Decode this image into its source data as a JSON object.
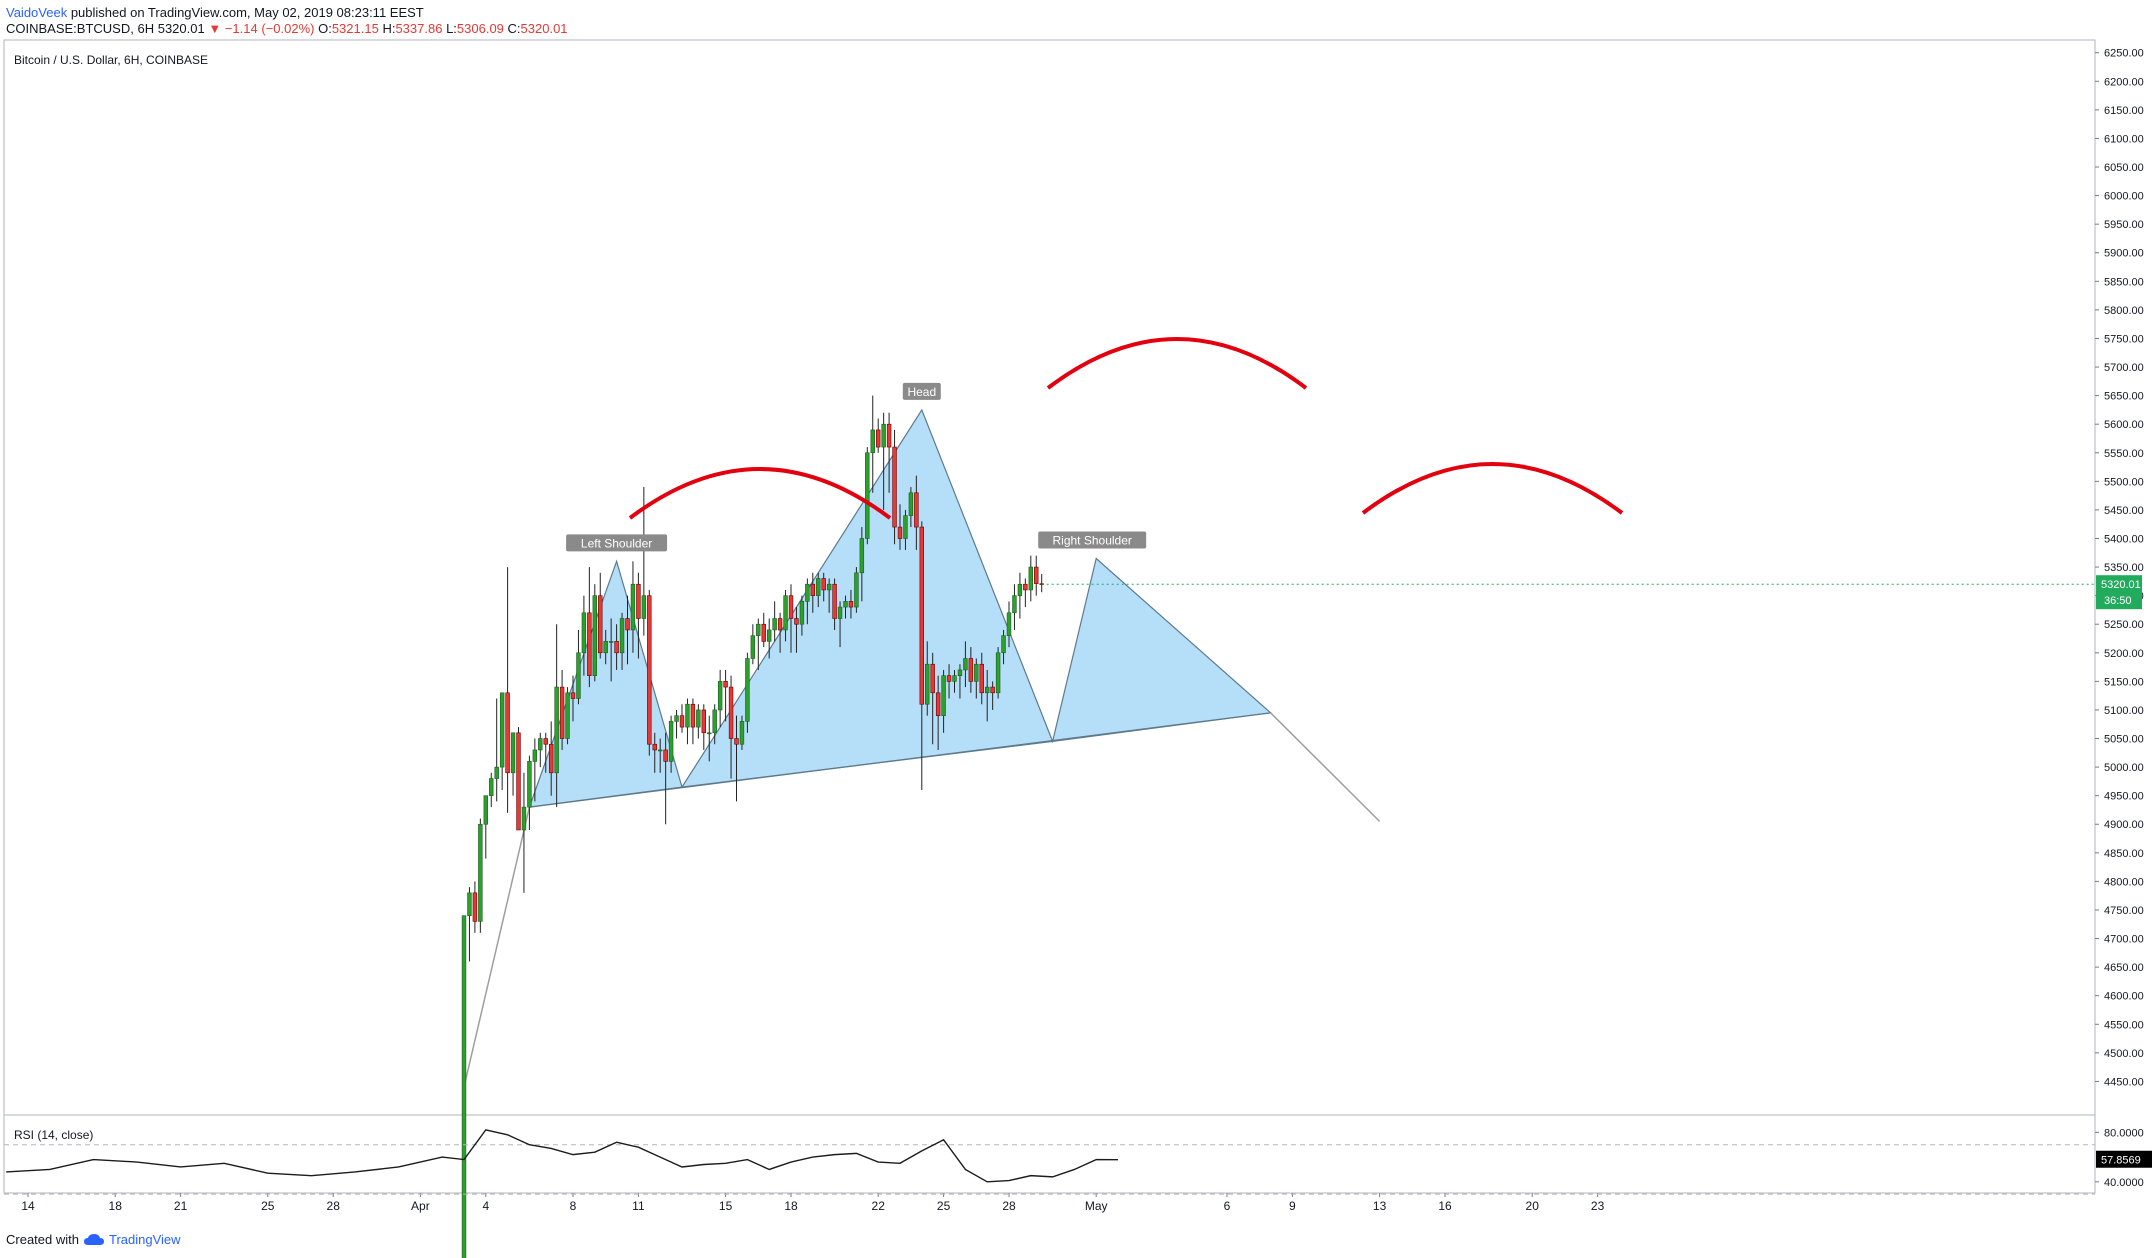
{
  "header": {
    "author": "VaidoVeek",
    "published": "published on TradingView.com, May 02, 2019 08:23:11 EEST",
    "symbol": "COINBASE:BTCUSD, 6H",
    "last": "5320.01",
    "change_arrow": "▼",
    "change": "−1.14 (−0.02%)",
    "o_label": "O:",
    "o": "5321.15",
    "h_label": "H:",
    "h": "5337.86",
    "l_label": "L:",
    "l": "5306.09",
    "c_label": "C:",
    "c": "5320.01"
  },
  "chart_title": "Bitcoin / U.S. Dollar, 6H, COINBASE",
  "rsi_label": "RSI (14, close)",
  "colors": {
    "up": "#26a69a",
    "up_fill": "#2ca02c",
    "down": "#e53935",
    "pattern_fill": "#a8d8f8",
    "pattern_stroke": "#5c7a8c",
    "arc": "#e3000f",
    "last_price_bg": "#22ab5c"
  },
  "footer": {
    "created_with": "Created with",
    "brand": "TradingView",
    "logo_icon": "tradingview-cloud-icon"
  },
  "chart_data": [
    {
      "type": "candlestick",
      "title": "Bitcoin / U.S. Dollar, 6H, COINBASE",
      "x_axis": {
        "labels": [
          "14",
          "18",
          "21",
          "25",
          "28",
          "Apr",
          "4",
          "8",
          "11",
          "15",
          "18",
          "22",
          "25",
          "28",
          "May",
          "6",
          "9",
          "13",
          "16",
          "20",
          "23"
        ]
      },
      "y_axis": {
        "ylim": [
          4400,
          6260
        ],
        "ticks": [
          "6250.00",
          "6200.00",
          "6150.00",
          "6100.00",
          "6050.00",
          "6000.00",
          "5950.00",
          "5900.00",
          "5850.00",
          "5800.00",
          "5750.00",
          "5700.00",
          "5650.00",
          "5600.00",
          "5550.00",
          "5500.00",
          "5450.00",
          "5400.00",
          "5350.00",
          "5300.00",
          "5250.00",
          "5200.00",
          "5150.00",
          "5100.00",
          "5050.00",
          "5000.00",
          "4950.00",
          "4900.00",
          "4850.00",
          "4800.00",
          "4750.00",
          "4700.00",
          "4650.00",
          "4600.00",
          "4550.00",
          "4500.00",
          "4450.00"
        ],
        "position": "right"
      },
      "last_price_label": "5320.01",
      "countdown_label": "36:50",
      "annotations": [
        "Left Shoulder",
        "Head",
        "Right Shoulder"
      ],
      "pattern": "head and shoulders",
      "pattern_points": [
        {
          "date": "Apr 5",
          "price": 4930
        },
        {
          "date": "Apr 9",
          "price": 5360
        },
        {
          "date": "Apr 12",
          "price": 4965
        },
        {
          "date": "Apr 23",
          "price": 5625
        },
        {
          "date": "Apr 29",
          "price": 5045
        },
        {
          "date": "May 1",
          "price": 5365
        },
        {
          "date": "May 9",
          "price": 5095
        }
      ],
      "extension_line": [
        {
          "date": "Apr 2",
          "price": 4440
        },
        {
          "date": "Apr 5",
          "price": 4930
        },
        {
          "date": "May 9",
          "price": 5095
        },
        {
          "date": "May 14",
          "price": 4905
        }
      ],
      "candles": [
        [
          4140,
          4740,
          4140,
          4740
        ],
        [
          4740,
          4790,
          4660,
          4780
        ],
        [
          4780,
          4800,
          4710,
          4730
        ],
        [
          4730,
          4910,
          4710,
          4900
        ],
        [
          4900,
          4950,
          4840,
          4950
        ],
        [
          4950,
          4990,
          4930,
          4980
        ],
        [
          4980,
          5120,
          4940,
          5000
        ],
        [
          5000,
          5130,
          4960,
          5130
        ],
        [
          5130,
          5350,
          4920,
          4990
        ],
        [
          4990,
          5060,
          4950,
          5060
        ],
        [
          5060,
          5070,
          4900,
          4890
        ],
        [
          4890,
          4990,
          4780,
          4930
        ],
        [
          4930,
          5020,
          4890,
          5010
        ],
        [
          5010,
          5050,
          4940,
          5030
        ],
        [
          5030,
          5060,
          5000,
          5050
        ],
        [
          5050,
          5060,
          4990,
          5040
        ],
        [
          5040,
          5080,
          4950,
          4990
        ],
        [
          4990,
          5250,
          4930,
          5140
        ],
        [
          5140,
          5170,
          5030,
          5050
        ],
        [
          5050,
          5140,
          5040,
          5130
        ],
        [
          5130,
          5160,
          5080,
          5120
        ],
        [
          5120,
          5240,
          5110,
          5200
        ],
        [
          5200,
          5300,
          5160,
          5270
        ],
        [
          5270,
          5350,
          5140,
          5160
        ],
        [
          5160,
          5320,
          5150,
          5300
        ],
        [
          5300,
          5340,
          5190,
          5200
        ],
        [
          5200,
          5240,
          5180,
          5220
        ],
        [
          5220,
          5260,
          5150,
          5220
        ],
        [
          5220,
          5250,
          5170,
          5200
        ],
        [
          5200,
          5270,
          5170,
          5260
        ],
        [
          5260,
          5300,
          5180,
          5240
        ],
        [
          5240,
          5360,
          5200,
          5320
        ],
        [
          5320,
          5340,
          5190,
          5260
        ],
        [
          5260,
          5490,
          5230,
          5300
        ],
        [
          5300,
          5310,
          5020,
          5040
        ],
        [
          5040,
          5060,
          4990,
          5030
        ],
        [
          5030,
          5050,
          4990,
          5030
        ],
        [
          5030,
          5060,
          4900,
          5010
        ],
        [
          5010,
          5090,
          4990,
          5080
        ],
        [
          5080,
          5100,
          5050,
          5090
        ],
        [
          5090,
          5110,
          5060,
          5070
        ],
        [
          5070,
          5120,
          5040,
          5110
        ],
        [
          5110,
          5120,
          5040,
          5070
        ],
        [
          5070,
          5110,
          5050,
          5100
        ],
        [
          5100,
          5110,
          5030,
          5060
        ],
        [
          5060,
          5090,
          5010,
          5060
        ],
        [
          5060,
          5110,
          5040,
          5100
        ],
        [
          5100,
          5170,
          5070,
          5150
        ],
        [
          5150,
          5170,
          5080,
          5140
        ],
        [
          5140,
          5160,
          4980,
          5050
        ],
        [
          5050,
          5090,
          4940,
          5040
        ],
        [
          5040,
          5090,
          5030,
          5080
        ],
        [
          5080,
          5200,
          5060,
          5190
        ],
        [
          5190,
          5250,
          5180,
          5230
        ],
        [
          5230,
          5260,
          5170,
          5250
        ],
        [
          5250,
          5270,
          5210,
          5220
        ],
        [
          5220,
          5260,
          5190,
          5240
        ],
        [
          5240,
          5290,
          5220,
          5260
        ],
        [
          5260,
          5270,
          5200,
          5240
        ],
        [
          5240,
          5310,
          5220,
          5300
        ],
        [
          5300,
          5320,
          5200,
          5260
        ],
        [
          5260,
          5280,
          5200,
          5250
        ],
        [
          5250,
          5300,
          5230,
          5290
        ],
        [
          5290,
          5330,
          5250,
          5320
        ],
        [
          5320,
          5340,
          5270,
          5300
        ],
        [
          5300,
          5340,
          5280,
          5330
        ],
        [
          5330,
          5340,
          5290,
          5310
        ],
        [
          5310,
          5330,
          5270,
          5320
        ],
        [
          5320,
          5330,
          5240,
          5260
        ],
        [
          5260,
          5290,
          5210,
          5280
        ],
        [
          5280,
          5300,
          5260,
          5290
        ],
        [
          5290,
          5310,
          5260,
          5280
        ],
        [
          5280,
          5350,
          5270,
          5340
        ],
        [
          5340,
          5420,
          5290,
          5400
        ],
        [
          5400,
          5560,
          5390,
          5550
        ],
        [
          5550,
          5650,
          5480,
          5590
        ],
        [
          5590,
          5610,
          5550,
          5560
        ],
        [
          5560,
          5620,
          5450,
          5600
        ],
        [
          5600,
          5620,
          5480,
          5560
        ],
        [
          5560,
          5590,
          5390,
          5420
        ],
        [
          5420,
          5460,
          5380,
          5400
        ],
        [
          5400,
          5450,
          5380,
          5440
        ],
        [
          5440,
          5490,
          5420,
          5480
        ],
        [
          5480,
          5510,
          5380,
          5420
        ],
        [
          5420,
          5430,
          4960,
          5110
        ],
        [
          5110,
          5220,
          5090,
          5180
        ],
        [
          5180,
          5200,
          5040,
          5130
        ],
        [
          5130,
          5160,
          5030,
          5090
        ],
        [
          5090,
          5170,
          5060,
          5160
        ],
        [
          5160,
          5180,
          5120,
          5150
        ],
        [
          5150,
          5170,
          5130,
          5160
        ],
        [
          5160,
          5180,
          5120,
          5170
        ],
        [
          5170,
          5220,
          5140,
          5190
        ],
        [
          5190,
          5210,
          5130,
          5150
        ],
        [
          5150,
          5190,
          5120,
          5180
        ],
        [
          5180,
          5200,
          5110,
          5130
        ],
        [
          5130,
          5170,
          5080,
          5140
        ],
        [
          5140,
          5150,
          5100,
          5130
        ],
        [
          5130,
          5210,
          5120,
          5200
        ],
        [
          5200,
          5240,
          5180,
          5230
        ],
        [
          5230,
          5290,
          5210,
          5270
        ],
        [
          5270,
          5320,
          5240,
          5300
        ],
        [
          5300,
          5340,
          5260,
          5320
        ],
        [
          5320,
          5330,
          5280,
          5310
        ],
        [
          5310,
          5370,
          5290,
          5350
        ],
        [
          5350,
          5370,
          5300,
          5321
        ],
        [
          5321,
          5338,
          5306,
          5320
        ]
      ]
    },
    {
      "type": "line",
      "title": "RSI (14, close)",
      "y_axis": {
        "ylim": [
          35,
          90
        ],
        "ticks": [
          "80.0000",
          "40.0000"
        ]
      },
      "levels": [
        70,
        30
      ],
      "last_value_label": "57.8569",
      "x": [
        "Mar 13",
        "Mar 15",
        "Mar 17",
        "Mar 19",
        "Mar 21",
        "Mar 23",
        "Mar 25",
        "Mar 27",
        "Mar 29",
        "Mar 31",
        "Apr 1",
        "Apr 2",
        "Apr 3",
        "Apr 4",
        "Apr 5",
        "Apr 6",
        "Apr 7",
        "Apr 8",
        "Apr 9",
        "Apr 10",
        "Apr 11",
        "Apr 12",
        "Apr 13",
        "Apr 14",
        "Apr 15",
        "Apr 16",
        "Apr 17",
        "Apr 18",
        "Apr 19",
        "Apr 20",
        "Apr 21",
        "Apr 22",
        "Apr 23",
        "Apr 24",
        "Apr 25",
        "Apr 26",
        "Apr 27",
        "Apr 28",
        "Apr 29",
        "Apr 30",
        "May 1",
        "May 2"
      ],
      "values": [
        48,
        50,
        58,
        56,
        52,
        55,
        47,
        45,
        48,
        52,
        60,
        58,
        82,
        78,
        70,
        67,
        62,
        64,
        72,
        68,
        60,
        52,
        54,
        55,
        58,
        50,
        56,
        60,
        62,
        63,
        56,
        55,
        65,
        74,
        50,
        40,
        41,
        45,
        44,
        50,
        58,
        57.86
      ]
    }
  ]
}
